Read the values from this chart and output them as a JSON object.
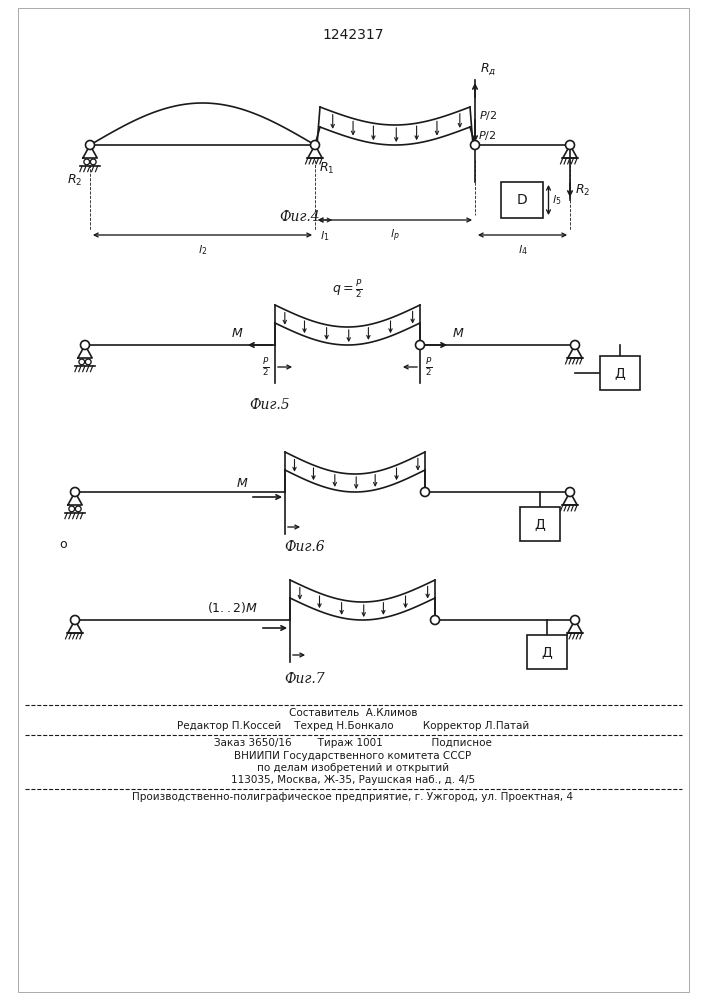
{
  "title": "1242317",
  "bg_color": "#ffffff",
  "line_color": "#1a1a1a",
  "fig4_label": "Фиг.4",
  "fig5_label": "Фиг.5",
  "fig6_label": "Фиг.6",
  "fig7_label": "Фиг.7",
  "footer_lines": [
    "Составитель  А.Климов",
    "Редактор П.Коссей    Техред Н.Бонкало         Корректор Л.Патай",
    "Заказ 3650/16        Тираж 1001               Подписное",
    "ВНИИПИ Государственного комитета СССР",
    "по делам изобретений и открытий",
    "113035, Москва, Ж-35, Раушская наб., д. 4/5",
    "Производственно-полиграфическое предприятие, г. Ужгород, ул. Проектная, 4"
  ]
}
